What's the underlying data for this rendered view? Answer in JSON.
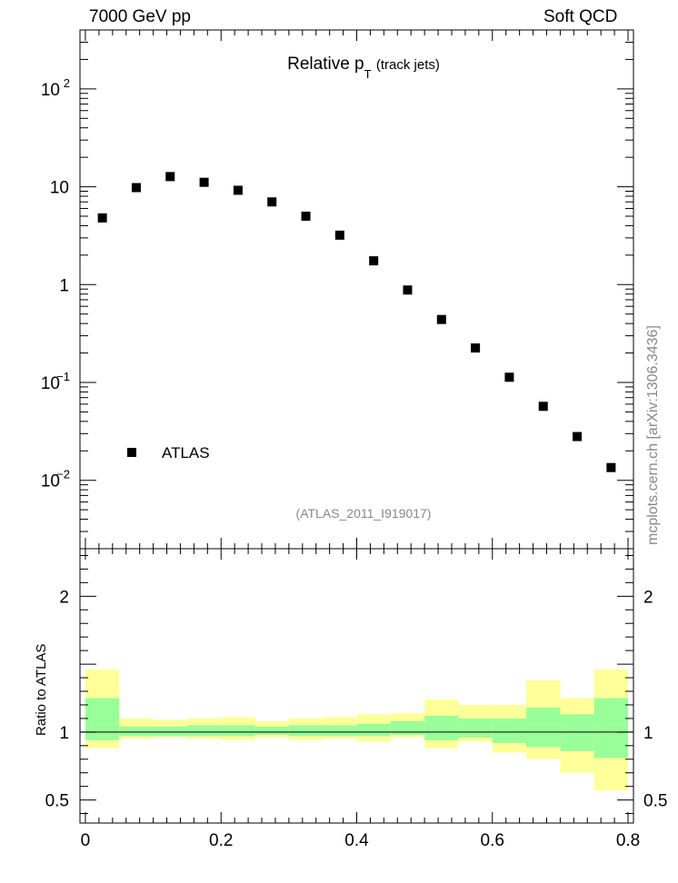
{
  "header": {
    "left": "7000 GeV pp",
    "right": "Soft QCD"
  },
  "title": {
    "main": "Relative p",
    "subscript": "T",
    "aside": "(track jets)"
  },
  "analysis_label": "(ATLAS_2011_I919017)",
  "watermark": "mcplots.cern.ch [arXiv:1306.3436]",
  "ratio_ylabel": "Ratio to ATLAS",
  "legend": {
    "entries": [
      "ATLAS"
    ],
    "placement": "bottom-left"
  },
  "colors": {
    "marker": "#000000",
    "band_inner": "#99ff99",
    "band_outer": "#ffff99",
    "axis": "#000000"
  },
  "chart_data": {
    "type": "scatter",
    "main": {
      "scale": "log",
      "ylim": [
        0.002,
        400
      ],
      "xlim": [
        -0.008,
        0.808
      ],
      "x_ticks": [
        "0",
        "0.2",
        "0.4",
        "0.6",
        "0.8"
      ],
      "y_ticks": [
        "10^-2",
        "10^-1",
        "1",
        "10",
        "10^2"
      ],
      "series": [
        {
          "name": "ATLAS",
          "x": [
            0.025,
            0.075,
            0.125,
            0.175,
            0.225,
            0.275,
            0.325,
            0.375,
            0.425,
            0.475,
            0.525,
            0.575,
            0.625,
            0.675,
            0.725,
            0.775
          ],
          "y": [
            4.8,
            9.8,
            12.7,
            11.1,
            9.2,
            7.0,
            5.0,
            3.2,
            1.75,
            0.88,
            0.44,
            0.225,
            0.113,
            0.057,
            0.028,
            0.0135
          ]
        }
      ]
    },
    "ratio": {
      "ylim": [
        0.33,
        2.35
      ],
      "y_ticks": [
        "0.5",
        "1",
        "2"
      ],
      "reference": 1,
      "bins": [
        {
          "lo": 0.0,
          "hi": 0.05,
          "inner": [
            0.94,
            1.25
          ],
          "outer": [
            0.88,
            1.46
          ]
        },
        {
          "lo": 0.05,
          "hi": 0.1,
          "inner": [
            0.97,
            1.04
          ],
          "outer": [
            0.95,
            1.1
          ]
        },
        {
          "lo": 0.1,
          "hi": 0.15,
          "inner": [
            0.97,
            1.04
          ],
          "outer": [
            0.96,
            1.09
          ]
        },
        {
          "lo": 0.15,
          "hi": 0.2,
          "inner": [
            0.97,
            1.05
          ],
          "outer": [
            0.95,
            1.1
          ]
        },
        {
          "lo": 0.2,
          "hi": 0.25,
          "inner": [
            0.97,
            1.05
          ],
          "outer": [
            0.94,
            1.11
          ]
        },
        {
          "lo": 0.25,
          "hi": 0.3,
          "inner": [
            0.98,
            1.04
          ],
          "outer": [
            0.96,
            1.08
          ]
        },
        {
          "lo": 0.3,
          "hi": 0.35,
          "inner": [
            0.97,
            1.05
          ],
          "outer": [
            0.94,
            1.1
          ]
        },
        {
          "lo": 0.35,
          "hi": 0.4,
          "inner": [
            0.97,
            1.05
          ],
          "outer": [
            0.95,
            1.11
          ]
        },
        {
          "lo": 0.4,
          "hi": 0.45,
          "inner": [
            0.97,
            1.06
          ],
          "outer": [
            0.93,
            1.13
          ]
        },
        {
          "lo": 0.45,
          "hi": 0.5,
          "inner": [
            0.98,
            1.08
          ],
          "outer": [
            0.96,
            1.14
          ]
        },
        {
          "lo": 0.5,
          "hi": 0.55,
          "inner": [
            0.94,
            1.12
          ],
          "outer": [
            0.88,
            1.24
          ]
        },
        {
          "lo": 0.55,
          "hi": 0.6,
          "inner": [
            0.96,
            1.1
          ],
          "outer": [
            0.93,
            1.2
          ]
        },
        {
          "lo": 0.6,
          "hi": 0.65,
          "inner": [
            0.92,
            1.1
          ],
          "outer": [
            0.85,
            1.2
          ]
        },
        {
          "lo": 0.65,
          "hi": 0.7,
          "inner": [
            0.89,
            1.18
          ],
          "outer": [
            0.8,
            1.38
          ]
        },
        {
          "lo": 0.7,
          "hi": 0.75,
          "inner": [
            0.86,
            1.13
          ],
          "outer": [
            0.7,
            1.25
          ]
        },
        {
          "lo": 0.75,
          "hi": 0.8,
          "inner": [
            0.81,
            1.25
          ],
          "outer": [
            0.57,
            1.46
          ]
        }
      ]
    }
  }
}
